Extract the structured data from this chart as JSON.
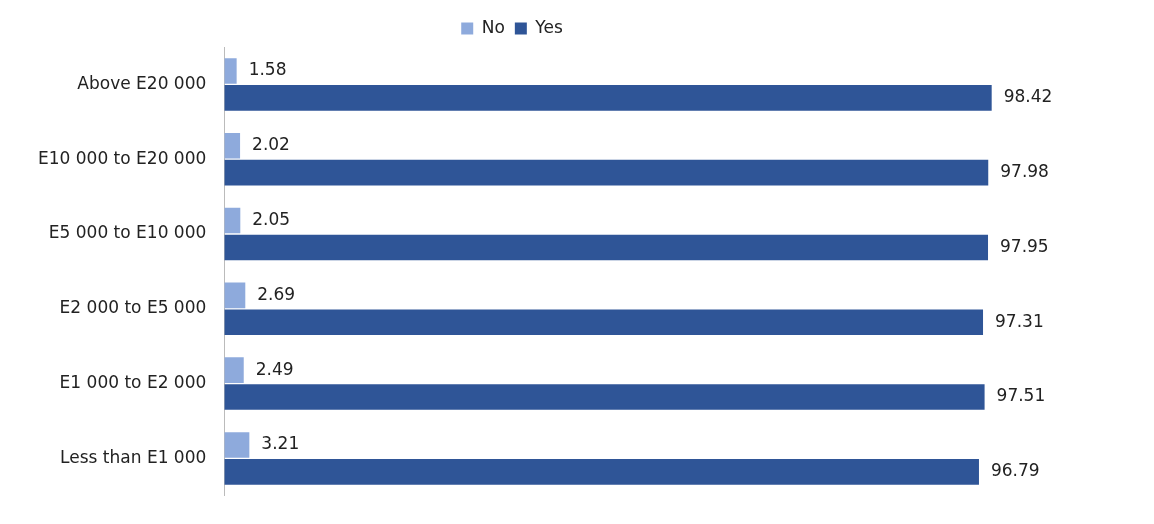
{
  "chart_data": {
    "type": "bar",
    "orientation": "horizontal",
    "categories": [
      "Above E20 000",
      "E10 000 to E20 000",
      "E5 000 to E10 000",
      "E2 000 to E5 000",
      "E1 000 to E2 000",
      "Less than E1 000"
    ],
    "series": [
      {
        "name": "No",
        "color": "#8eaadc",
        "values": [
          1.58,
          2.02,
          2.05,
          2.69,
          2.49,
          3.21
        ]
      },
      {
        "name": "Yes",
        "color": "#2f5597",
        "values": [
          98.42,
          97.98,
          97.95,
          97.31,
          97.51,
          96.79
        ]
      }
    ],
    "tick_labels": "y",
    "data_labels": true,
    "legend": "top"
  }
}
